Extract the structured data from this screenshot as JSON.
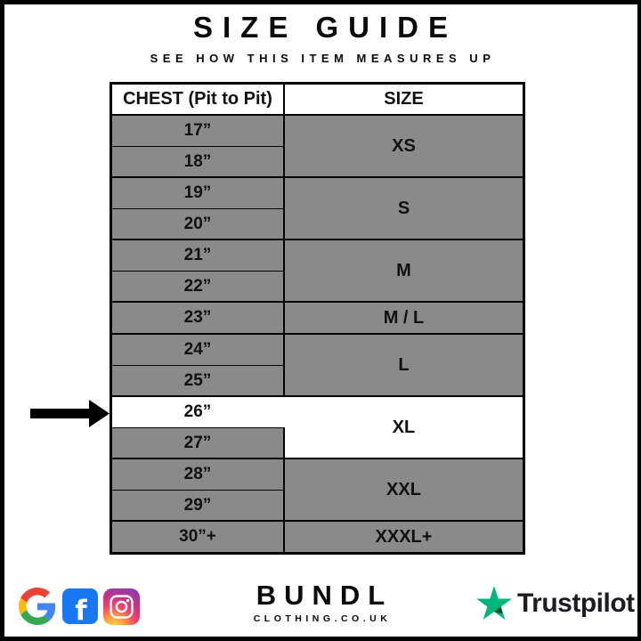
{
  "page": {
    "title": "SIZE GUIDE",
    "subtitle": "SEE HOW THIS ITEM MEASURES UP"
  },
  "chart_data": {
    "type": "table",
    "title": "SIZE GUIDE",
    "subtitle": "SEE HOW THIS ITEM MEASURES UP",
    "columns": [
      "CHEST (Pit to Pit)",
      "SIZE"
    ],
    "groups": [
      {
        "chest": [
          "17”",
          "18”"
        ],
        "size": "XS"
      },
      {
        "chest": [
          "19”",
          "20”"
        ],
        "size": "S"
      },
      {
        "chest": [
          "21”",
          "22”"
        ],
        "size": "M"
      },
      {
        "chest": [
          "23”"
        ],
        "size": "M / L"
      },
      {
        "chest": [
          "24”",
          "25”"
        ],
        "size": "L"
      },
      {
        "chest": [
          "26”",
          "27”"
        ],
        "size": "XL",
        "highlight": true,
        "highlight_chest_rows": [
          0
        ]
      },
      {
        "chest": [
          "28”",
          "29”"
        ],
        "size": "XXL"
      },
      {
        "chest": [
          "30”+"
        ],
        "size": "XXXL+"
      }
    ],
    "highlight": {
      "chest": "26”",
      "size": "XL",
      "indicator": "black left-side arrow pointing at the 26” row"
    }
  },
  "footer": {
    "brand_name": "BUNDL",
    "brand_domain": "CLOTHING.CO.UK",
    "trustpilot_label": "Trustpilot",
    "social_icons": [
      "google-icon",
      "facebook-icon",
      "instagram-icon"
    ]
  },
  "colors": {
    "cell_gray": "#8a8a8a",
    "highlight_white": "#ffffff",
    "border_black": "#000000",
    "google_red": "#EA4335",
    "google_blue": "#4285F4",
    "google_yellow": "#FBBC05",
    "google_green": "#34A853",
    "facebook_blue": "#1877F2",
    "trustpilot_green": "#00B67A",
    "trustpilot_dark_green": "#005128",
    "arrow_black": "#000000",
    "text_black": "#111111"
  }
}
